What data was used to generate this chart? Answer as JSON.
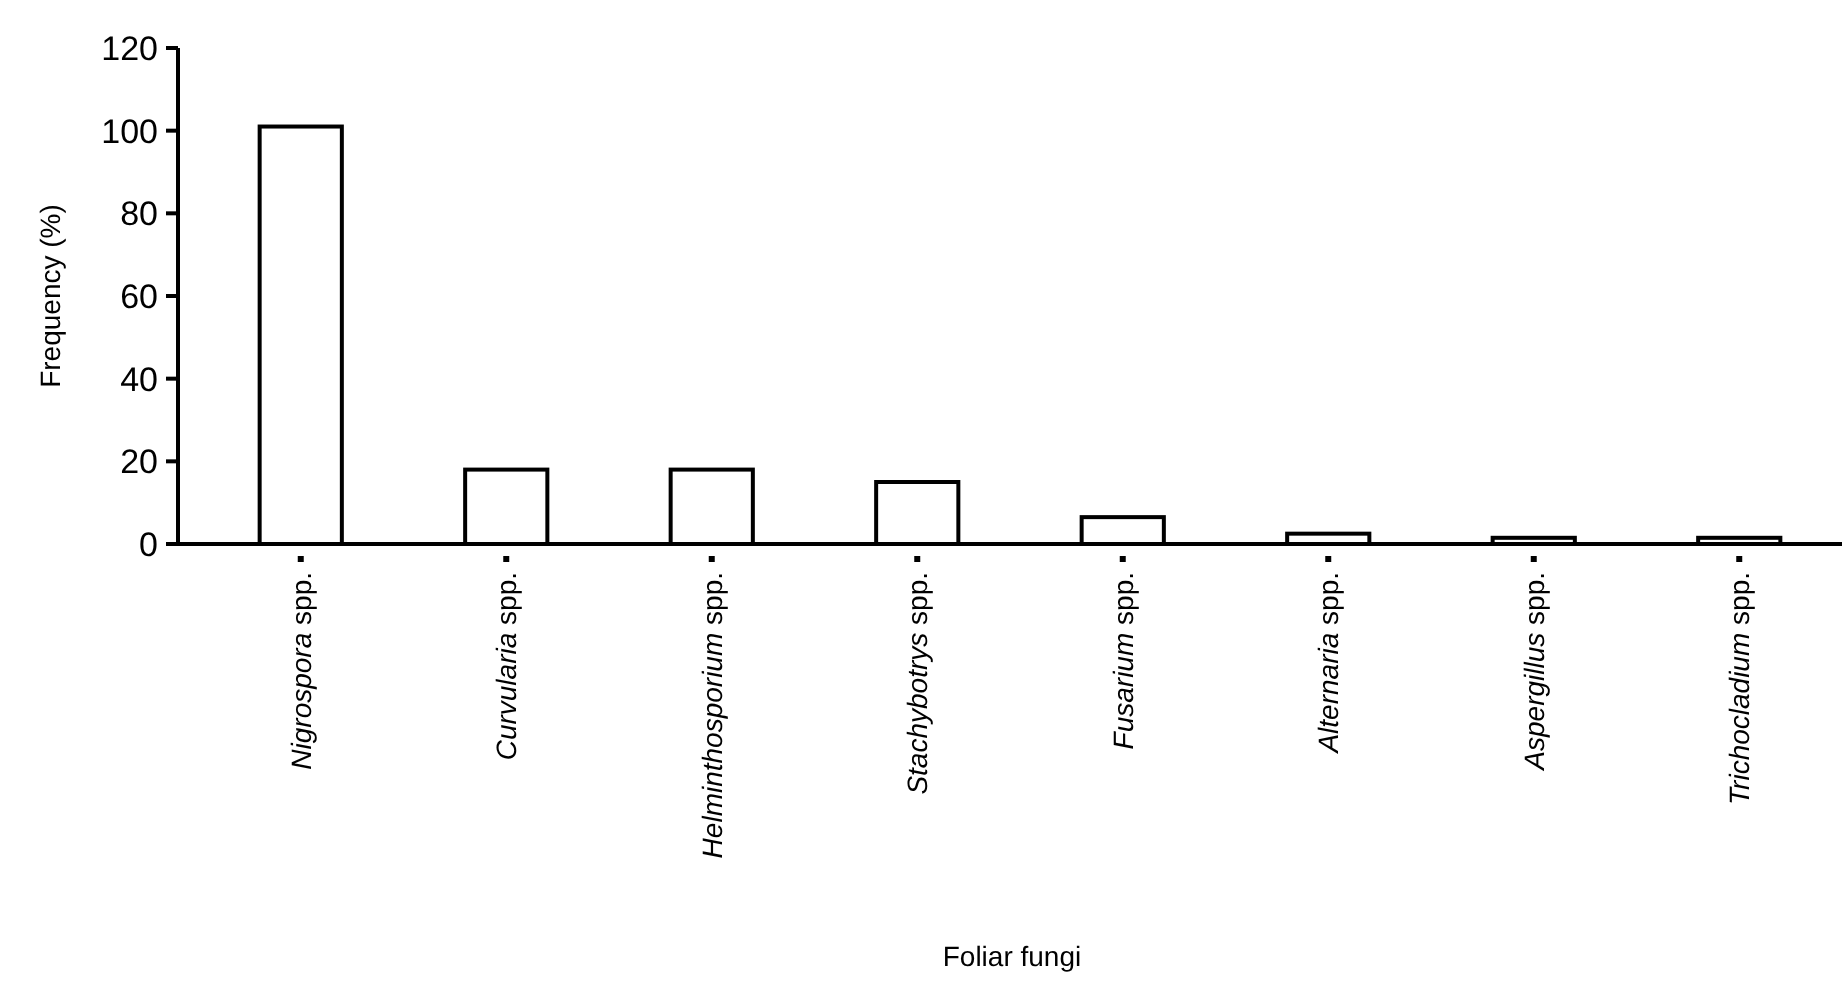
{
  "chart_data": {
    "type": "bar",
    "xlabel": "Foliar fungi",
    "ylabel": "Frequency (%)",
    "categories": [
      "Nigrospora spp.",
      "Curvularia spp.",
      "Helminthosporium spp.",
      "Stachybotrys spp.",
      "Fusarium spp.",
      "Alternaria spp.",
      "Aspergillus spp.",
      "Trichocladium spp."
    ],
    "values": [
      101,
      18,
      18,
      15,
      6.5,
      2.5,
      1.5,
      1.5
    ],
    "color": "#ffffff",
    "ylim": [
      0,
      120
    ],
    "yticks": [
      0,
      20,
      40,
      60,
      80,
      100,
      120
    ],
    "grid": false
  }
}
